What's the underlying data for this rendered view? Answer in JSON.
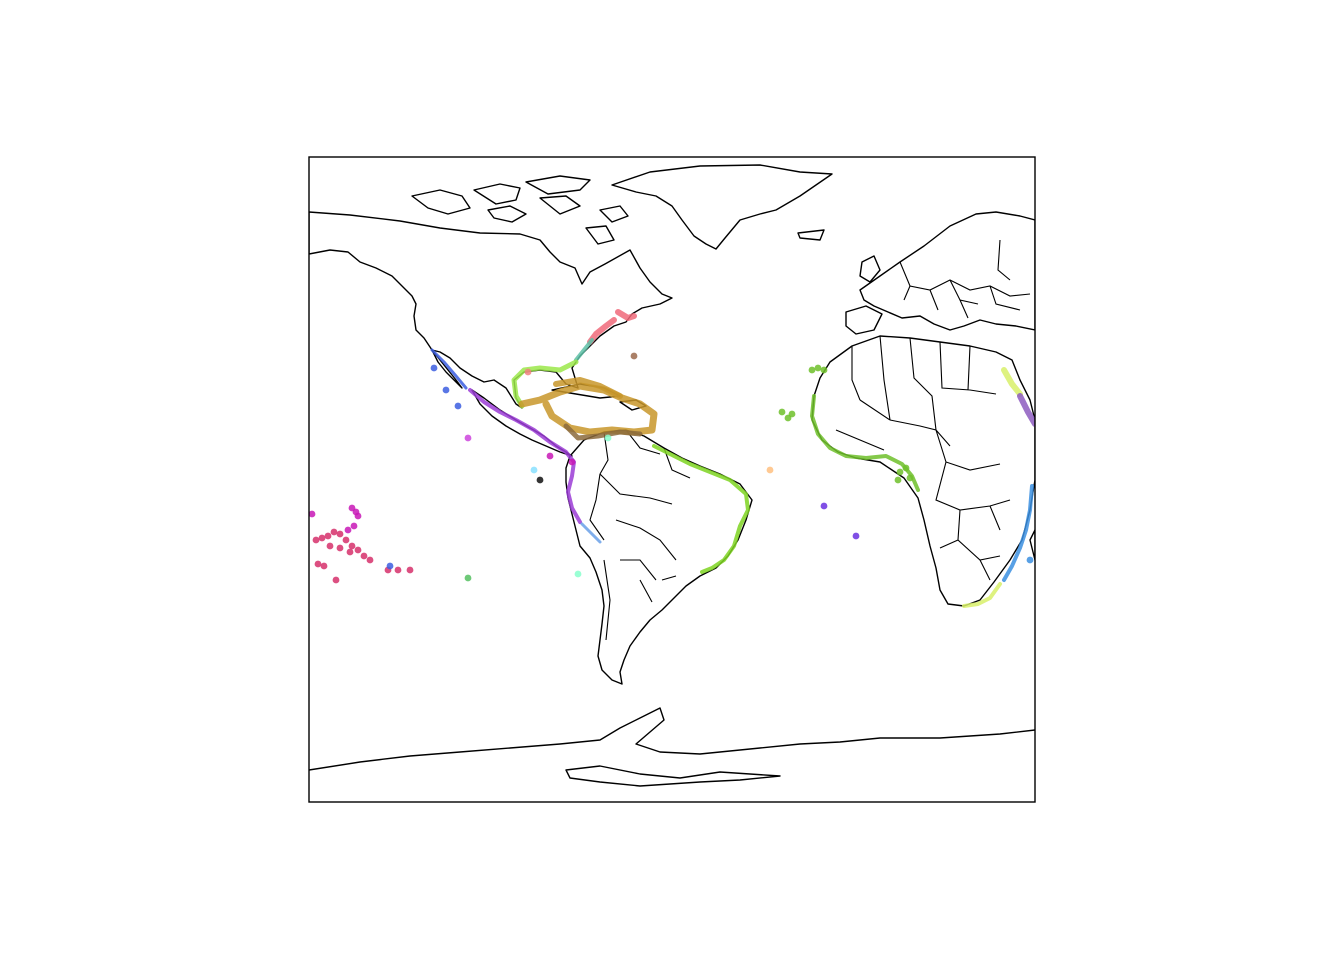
{
  "map": {
    "projection": "world-equirectangular",
    "frame": true,
    "basemap": "country-borders-outline",
    "legend": null
  },
  "colors": {
    "caribbean": "#c8962a",
    "caribbean_dark": "#8b6a3c",
    "brazil_coast": "#7ed321",
    "pacific_mexico": "#9b3cd6",
    "pacific_blue": "#3c5ee0",
    "peru_chile": "#b062e0",
    "hawaii_red": "#d6306b",
    "hawaii_magenta": "#c818b6",
    "us_east": "#f06a7a",
    "gulf_lime": "#9be84a",
    "west_africa": "#6fbf2a",
    "east_africa_blue": "#3b8fe0",
    "red_sea_purple": "#8d5cc0",
    "red_sea_lime": "#d8f06a"
  }
}
